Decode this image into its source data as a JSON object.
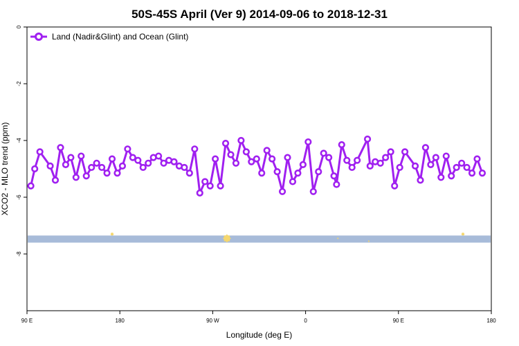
{
  "chart_data": {
    "type": "line",
    "title": "50S-45S April (Ver 9)   2014-09-06 to 2018-12-31",
    "xlabel": "Longitude (deg E)",
    "ylabel": "XCO2 - MLO trend (ppm)",
    "xlim": [
      90,
      450
    ],
    "ylim": [
      -10,
      0
    ],
    "y_inverted": true,
    "x_ticks": [
      {
        "value": 90,
        "label": "90 E"
      },
      {
        "value": 162,
        "label": "180"
      },
      {
        "value": 234,
        "label": "90 W"
      },
      {
        "value": 306,
        "label": "0"
      },
      {
        "value": 378,
        "label": "90 E"
      },
      {
        "value": 450,
        "label": "180"
      }
    ],
    "y_ticks": [
      {
        "value": 0,
        "label": "0"
      },
      {
        "value": -2,
        "label": "-2"
      },
      {
        "value": -4,
        "label": "-4"
      },
      {
        "value": -6,
        "label": "-6"
      },
      {
        "value": -8,
        "label": "-8"
      }
    ],
    "legend": {
      "position": "top-left",
      "entries": [
        "Land (Nadir&Glint) and Ocean (Glint)"
      ]
    },
    "colors": {
      "series": "#a020f0",
      "band": "#a7bbd9",
      "markers": "#f5d76e"
    },
    "series": [
      {
        "name": "Land (Nadir&Glint) and Ocean (Glint)",
        "points": [
          [
            93,
            -5.6
          ],
          [
            96,
            -5.0
          ],
          [
            100,
            -4.4
          ],
          [
            108,
            -4.9
          ],
          [
            112,
            -5.4
          ],
          [
            116,
            -4.25
          ],
          [
            120,
            -4.85
          ],
          [
            124,
            -4.6
          ],
          [
            128,
            -5.3
          ],
          [
            132,
            -4.55
          ],
          [
            136,
            -5.25
          ],
          [
            140,
            -4.95
          ],
          [
            144,
            -4.8
          ],
          [
            148,
            -4.95
          ],
          [
            152,
            -5.15
          ],
          [
            156,
            -4.65
          ],
          [
            160,
            -5.15
          ],
          [
            164,
            -4.9
          ],
          [
            168,
            -4.3
          ],
          [
            172,
            -4.6
          ],
          [
            176,
            -4.7
          ],
          [
            180,
            -4.95
          ],
          [
            184,
            -4.8
          ],
          [
            188,
            -4.6
          ],
          [
            192,
            -4.55
          ],
          [
            196,
            -4.8
          ],
          [
            200,
            -4.7
          ],
          [
            204,
            -4.75
          ],
          [
            208,
            -4.9
          ],
          [
            212,
            -4.95
          ],
          [
            216,
            -5.15
          ],
          [
            220,
            -4.3
          ],
          [
            224,
            -5.85
          ],
          [
            228,
            -5.45
          ],
          [
            232,
            -5.6
          ],
          [
            236,
            -4.65
          ],
          [
            240,
            -5.6
          ],
          [
            244,
            -4.1
          ],
          [
            248,
            -4.5
          ],
          [
            252,
            -4.8
          ],
          [
            256,
            -4.0
          ],
          [
            260,
            -4.4
          ],
          [
            264,
            -4.75
          ],
          [
            268,
            -4.65
          ],
          [
            272,
            -5.15
          ],
          [
            276,
            -4.35
          ],
          [
            280,
            -4.65
          ],
          [
            284,
            -5.1
          ],
          [
            288,
            -5.8
          ],
          [
            292,
            -4.6
          ],
          [
            296,
            -5.45
          ],
          [
            300,
            -5.15
          ],
          [
            304,
            -4.85
          ],
          [
            308,
            -4.05
          ],
          [
            312,
            -5.8
          ],
          [
            316,
            -5.1
          ],
          [
            320,
            -4.45
          ],
          [
            324,
            -4.6
          ],
          [
            328,
            -5.25
          ],
          [
            330,
            -5.55
          ],
          [
            334,
            -4.15
          ],
          [
            338,
            -4.7
          ],
          [
            342,
            -4.95
          ],
          [
            346,
            -4.7
          ],
          [
            354,
            -3.95
          ],
          [
            356,
            -4.9
          ],
          [
            360,
            -4.75
          ],
          [
            364,
            -4.8
          ],
          [
            368,
            -4.6
          ],
          [
            372,
            -4.4
          ],
          [
            375,
            -5.6
          ],
          [
            379,
            -4.95
          ],
          [
            383,
            -4.4
          ],
          [
            391,
            -4.9
          ],
          [
            395,
            -5.4
          ],
          [
            399,
            -4.25
          ],
          [
            403,
            -4.85
          ],
          [
            407,
            -4.6
          ],
          [
            411,
            -5.3
          ],
          [
            415,
            -4.55
          ],
          [
            419,
            -5.25
          ],
          [
            423,
            -4.95
          ],
          [
            427,
            -4.8
          ],
          [
            431,
            -4.95
          ],
          [
            435,
            -5.15
          ],
          [
            439,
            -4.65
          ],
          [
            443,
            -5.15
          ]
        ]
      }
    ],
    "band": {
      "y_from": -7.35,
      "y_to": -7.6
    },
    "band_markers": [
      {
        "x": 156,
        "y": -7.3,
        "size": "small"
      },
      {
        "x": 245,
        "y": -7.45,
        "size": "large"
      },
      {
        "x": 331,
        "y": -7.45,
        "size": "tiny"
      },
      {
        "x": 355,
        "y": -7.55,
        "size": "tiny"
      },
      {
        "x": 428,
        "y": -7.3,
        "size": "small"
      }
    ]
  }
}
